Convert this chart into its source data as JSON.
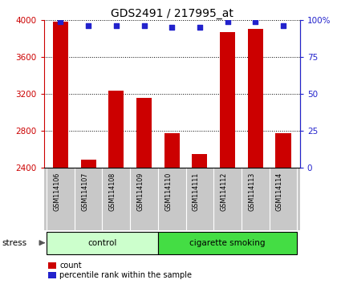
{
  "title": "GDS2491 / 217995_at",
  "samples": [
    "GSM114106",
    "GSM114107",
    "GSM114108",
    "GSM114109",
    "GSM114110",
    "GSM114111",
    "GSM114112",
    "GSM114113",
    "GSM114114"
  ],
  "counts": [
    3980,
    2490,
    3230,
    3155,
    2775,
    2545,
    3870,
    3900,
    2770
  ],
  "percentile_ranks": [
    99,
    96,
    96,
    96,
    95,
    95,
    99,
    99,
    96
  ],
  "ylim_left": [
    2400,
    4000
  ],
  "ylim_right": [
    0,
    100
  ],
  "yticks_left": [
    2400,
    2800,
    3200,
    3600,
    4000
  ],
  "yticks_right": [
    0,
    25,
    50,
    75,
    100
  ],
  "groups": [
    {
      "label": "control",
      "indices": [
        0,
        1,
        2,
        3
      ],
      "color": "#ccffcc"
    },
    {
      "label": "cigarette smoking",
      "indices": [
        4,
        5,
        6,
        7,
        8
      ],
      "color": "#44dd44"
    }
  ],
  "bar_color": "#cc0000",
  "dot_color": "#2222cc",
  "bar_width": 0.55,
  "stress_label": "stress",
  "legend_count_label": "count",
  "legend_percentile_label": "percentile rank within the sample",
  "tick_label_area_color": "#c8c8c8",
  "base_value": 2400,
  "right_axis_color": "#2222cc",
  "left_axis_color": "#cc0000",
  "title_fontsize": 10
}
